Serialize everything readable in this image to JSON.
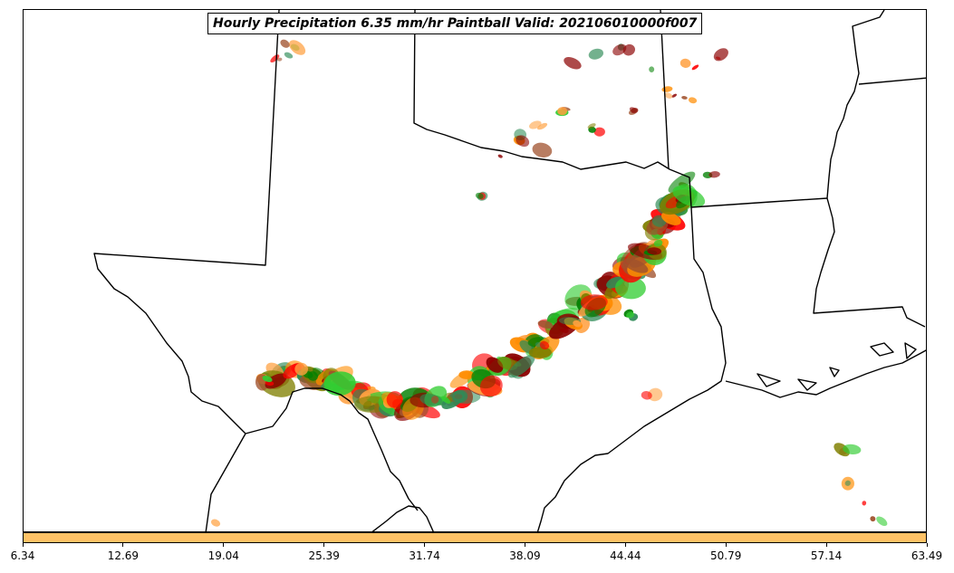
{
  "title": "Hourly Precipitation 6.35 mm/hr Paintball Valid: 202106010000f007",
  "colorbar": {
    "color": "#ffc266",
    "tick_labels": [
      "6.34",
      "12.69",
      "19.04",
      "25.39",
      "31.74",
      "38.09",
      "44.44",
      "50.79",
      "57.14",
      "63.49"
    ]
  },
  "map": {
    "region": "Texas and south-central United States",
    "boundary_color": "#000000",
    "ensemble_member_colors": [
      "#ff0000",
      "#ff8c00",
      "#ffa040",
      "#32cd32",
      "#008000",
      "#808000",
      "#8b0000",
      "#a0522d",
      "#2e8b57"
    ]
  }
}
